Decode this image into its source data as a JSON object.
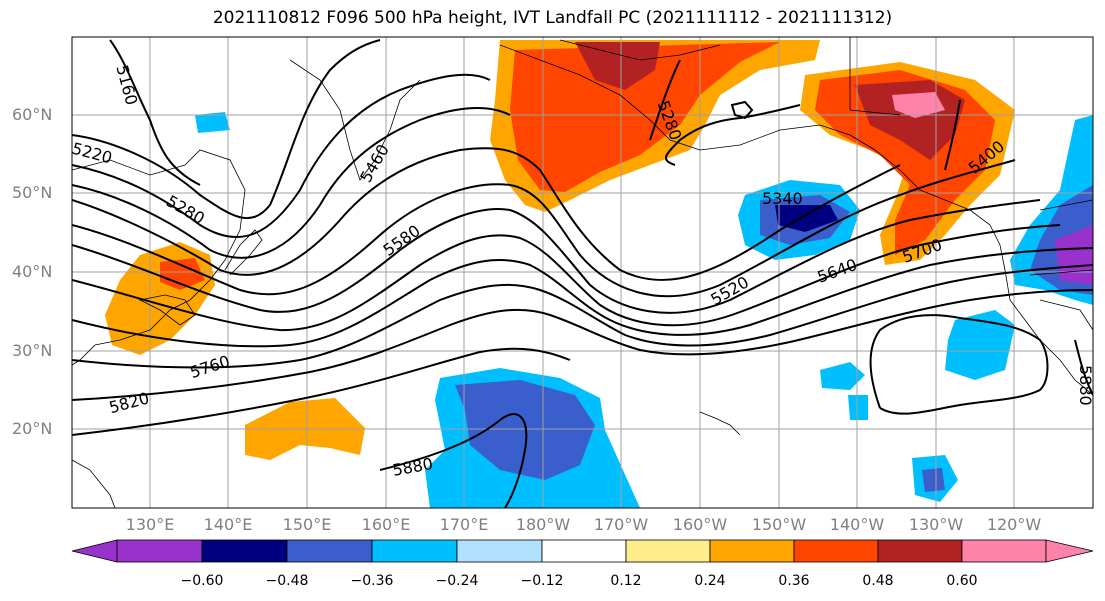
{
  "title": "2021110812 F096 500 hPa height, IVT Landfall PC (2021111112 - 2021111312)",
  "lat_labels": [
    "60°N",
    "50°N",
    "40°N",
    "30°N",
    "20°N"
  ],
  "lon_labels": [
    "130°E",
    "140°E",
    "150°E",
    "160°E",
    "170°E",
    "180°W",
    "170°W",
    "160°W",
    "150°W",
    "140°W",
    "130°W",
    "120°W"
  ],
  "contour_labels": [
    "5160",
    "5220",
    "5280",
    "5460",
    "5580",
    "5340",
    "5520",
    "5640",
    "5700",
    "5400",
    "5280",
    "5760",
    "5820",
    "5880",
    "5880"
  ],
  "colorbar": {
    "colors": [
      "#9932cc",
      "#000080",
      "#3a5fcd",
      "#00bfff",
      "#b0e2ff",
      "#ffffff",
      "#ffec8b",
      "#ffa500",
      "#ff4500",
      "#b22222",
      "#ff82ab"
    ],
    "ticks": [
      "−0.60",
      "−0.48",
      "−0.36",
      "−0.24",
      "−0.12",
      "0.12",
      "0.24",
      "0.36",
      "0.48",
      "0.60"
    ]
  }
}
